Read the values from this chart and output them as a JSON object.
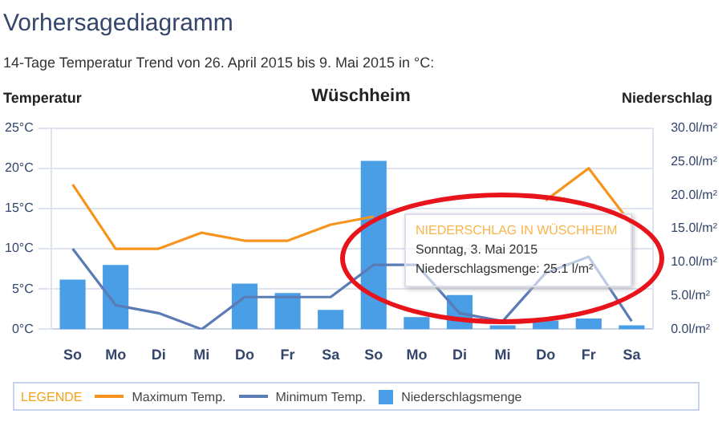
{
  "chart_data": {
    "type": "bar",
    "title": "Vorhersagediagramm",
    "subtitle": "14-Tage Temperatur Trend von 26. April 2015 bis 9. Mai 2015 in °C:",
    "ylabel": "Temperatur",
    "y2label": "Niederschlag",
    "legend_title": "LEGENDE",
    "annotations": [
      "Wüschheim",
      "NIEDERSCHLAG IN WÜSCHHEIM",
      "Sonntag, 3. Mai 2015",
      "Niederschlagsmenge:  25.1 l/m²"
    ],
    "categories": [
      "So",
      "Mo",
      "Di",
      "Mi",
      "Do",
      "Fr",
      "Sa",
      "So",
      "Mo",
      "Di",
      "Mi",
      "Do",
      "Fr",
      "Sa"
    ],
    "series": [
      {
        "name": "Maximum Temp.",
        "type": "line",
        "color": "#f7941d",
        "values": [
          18,
          10,
          10,
          12,
          11,
          11,
          13,
          14,
          null,
          null,
          null,
          16,
          20,
          13
        ]
      },
      {
        "name": "Minimum Temp.",
        "type": "line",
        "color": "#5b7bb5",
        "values": [
          10,
          3,
          2,
          0,
          4,
          4,
          4,
          8,
          8,
          2,
          1,
          7,
          9,
          1
        ]
      },
      {
        "name": "Niederschlagsmenge",
        "type": "bar",
        "axis": "y2",
        "color": "#4a9ee6",
        "values": [
          7.4,
          9.6,
          0,
          0,
          6.8,
          5.4,
          2.9,
          25.1,
          1.8,
          5.1,
          0.6,
          1.3,
          1.6,
          0.6
        ]
      }
    ],
    "ylim": [
      0,
      25
    ],
    "yticks": [
      {
        "value": 0,
        "label": "0°C"
      },
      {
        "value": 5,
        "label": "5°C"
      },
      {
        "value": 10,
        "label": "10°C"
      },
      {
        "value": 15,
        "label": "15°C"
      },
      {
        "value": 20,
        "label": "20°C"
      },
      {
        "value": 25,
        "label": "25°C"
      }
    ],
    "y2lim": [
      0,
      30
    ],
    "y2ticks": [
      {
        "value": 0,
        "label": "0.0l/m²"
      },
      {
        "value": 5,
        "label": "5.0l/m²"
      },
      {
        "value": 10,
        "label": "10.0l/m²"
      },
      {
        "value": 15,
        "label": "15.0l/m²"
      },
      {
        "value": 20,
        "label": "20.0l/m²"
      },
      {
        "value": 25,
        "label": "25.0l/m²"
      },
      {
        "value": 30,
        "label": "30.0l/m²"
      }
    ],
    "grid": "y",
    "legend": "bottom"
  }
}
